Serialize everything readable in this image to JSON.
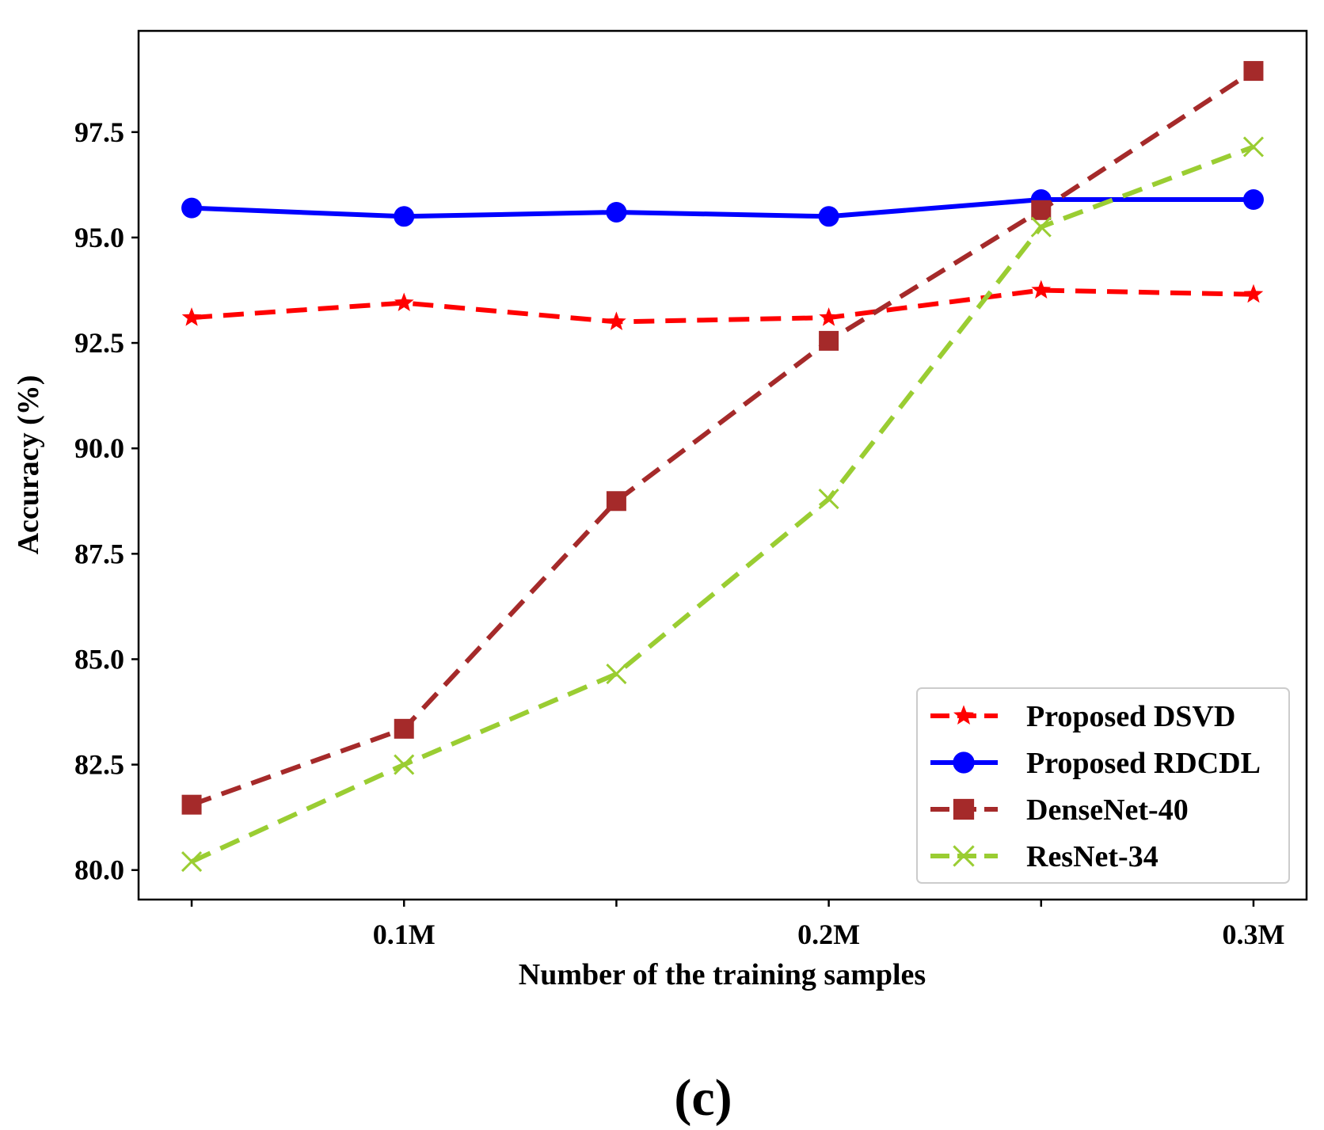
{
  "chart_data": {
    "type": "line",
    "xlabel": "Number of the training samples",
    "ylabel": "Accuracy (%)",
    "x": [
      0.05,
      0.1,
      0.15,
      0.2,
      0.25,
      0.3
    ],
    "xticks": [
      {
        "value": 0.05,
        "label": ""
      },
      {
        "value": 0.1,
        "label": "0.1M"
      },
      {
        "value": 0.15,
        "label": ""
      },
      {
        "value": 0.2,
        "label": "0.2M"
      },
      {
        "value": 0.25,
        "label": ""
      },
      {
        "value": 0.3,
        "label": "0.3M"
      }
    ],
    "xlim": [
      0.0375,
      0.3125
    ],
    "ylim": [
      79.3,
      99.9
    ],
    "yticks": [
      80.0,
      82.5,
      85.0,
      87.5,
      90.0,
      92.5,
      95.0,
      97.5
    ],
    "ytick_labels": [
      "80.0",
      "82.5",
      "85.0",
      "87.5",
      "90.0",
      "92.5",
      "95.0",
      "97.5"
    ],
    "grid": false,
    "legend_position": "lower-right",
    "series": [
      {
        "name": "Proposed DSVD",
        "color": "#ff0000",
        "style": "dashed",
        "marker": "star",
        "values": [
          93.1,
          93.45,
          93.0,
          93.1,
          93.75,
          93.65
        ]
      },
      {
        "name": "Proposed RDCDL",
        "color": "#0000ff",
        "style": "solid",
        "marker": "circle",
        "values": [
          95.7,
          95.5,
          95.6,
          95.5,
          95.9,
          95.9
        ]
      },
      {
        "name": "DenseNet-40",
        "color": "#a52a2a",
        "style": "dashed",
        "marker": "square",
        "values": [
          81.55,
          83.35,
          88.75,
          92.55,
          95.65,
          98.95
        ]
      },
      {
        "name": "ResNet-34",
        "color": "#9acd32",
        "style": "dashed",
        "marker": "x",
        "values": [
          80.2,
          82.5,
          84.65,
          88.8,
          95.25,
          97.15
        ]
      }
    ]
  },
  "panel_label": "(c)"
}
